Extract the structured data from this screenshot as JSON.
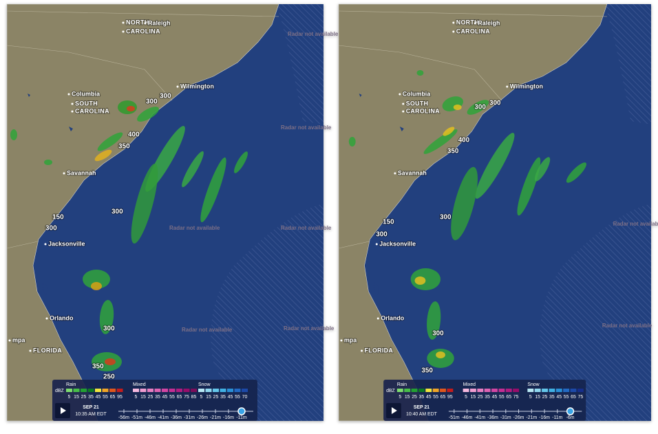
{
  "panels": [
    {
      "places": [
        "NORTH",
        "CAROLINA",
        "Raleigh",
        "Wilmington",
        "Columbia",
        "SOUTH",
        "CAROLINA",
        "Savannah",
        "Jacksonville",
        "Orlando",
        "mpa",
        "FLORIDA"
      ],
      "storm_labels": [
        "300",
        "300",
        "400",
        "350",
        "300",
        "150",
        "300",
        "300",
        "350",
        "250"
      ],
      "radar_notes": [
        "Radar not available",
        "Radar not available",
        "Radar not available",
        "Radar not available",
        "Radar not available",
        "Radar not available"
      ],
      "legend": {
        "rain": "Rain",
        "mixed": "Mixed",
        "snow": "Snow",
        "unit": "dBZ",
        "rain_scale": [
          "5",
          "15",
          "25",
          "35",
          "45",
          "55",
          "65",
          "95"
        ],
        "mixed_scale": [
          "5",
          "15",
          "25",
          "35",
          "45",
          "55",
          "65",
          "75",
          "85"
        ],
        "snow_scale": [
          "5",
          "15",
          "25",
          "35",
          "45",
          "55",
          "70"
        ]
      },
      "timeline": {
        "date": "SEP 21",
        "time": "10:35 AM EDT",
        "ticks": [
          "-56m",
          "-51m",
          "-46m",
          "-41m",
          "-36m",
          "-31m",
          "-26m",
          "-21m",
          "-16m",
          "-11m"
        ]
      }
    },
    {
      "places": [
        "NORTH",
        "CAROLINA",
        "Raleigh",
        "Wilmington",
        "Columbia",
        "SOUTH",
        "CAROLINA",
        "Savannah",
        "Jacksonville",
        "Orlando",
        "mpa",
        "FLORIDA"
      ],
      "storm_labels": [
        "300",
        "300",
        "400",
        "350",
        "300",
        "150",
        "300",
        "300",
        "350"
      ],
      "radar_notes": [
        "Radar not available",
        "Radar not available"
      ],
      "legend": {
        "rain": "Rain",
        "mixed": "Mixed",
        "snow": "Snow",
        "unit": "dBZ",
        "rain_scale": [
          "5",
          "15",
          "25",
          "35",
          "45",
          "55",
          "65",
          "95"
        ],
        "mixed_scale": [
          "5",
          "15",
          "25",
          "35",
          "45",
          "55",
          "65",
          "75"
        ],
        "snow_scale": [
          "5",
          "15",
          "25",
          "35",
          "45",
          "55",
          "65",
          "75"
        ]
      },
      "timeline": {
        "date": "SEP 21",
        "time": "10:40 AM EDT",
        "ticks": [
          "-51m",
          "-46m",
          "-41m",
          "-36m",
          "-31m",
          "-26m",
          "-21m",
          "-16m",
          "-11m",
          "-6m"
        ]
      }
    }
  ]
}
